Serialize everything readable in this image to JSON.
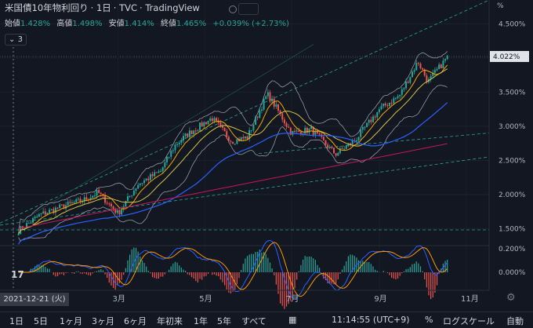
{
  "header": {
    "title": "米国債10年物利回り",
    "interval": "1日",
    "source": "TVC",
    "platform": "TradingView"
  },
  "ohlc": {
    "open_label": "始値",
    "open": "1.428%",
    "high_label": "高値",
    "high": "1.498%",
    "low_label": "安値",
    "low": "1.414%",
    "close_label": "終値",
    "close": "1.465%",
    "change": "+0.039% (+2.73%)"
  },
  "indicator_toggle": "3",
  "crosshair_date": "2021-12-21 (火)",
  "bottom_bar": {
    "ranges": [
      "1日",
      "5日",
      "1ヶ月",
      "3ヶ月",
      "6ヶ月",
      "年初来",
      "1年",
      "5年",
      "すべて"
    ],
    "time": "11:14:55 (UTC+9)",
    "percent": "%",
    "log": "ログスケール",
    "auto": "自動"
  },
  "colors": {
    "bg": "#131722",
    "up": "#26a69a",
    "down": "#ef5350",
    "ma_short": "#f7a600",
    "ma_mid": "#d4c34a",
    "ma_long": "#2962ff",
    "ma_200": "#c2185b",
    "bb": "#9598a1",
    "macd": "#2962ff",
    "signal": "#ff9800"
  },
  "chart_data": {
    "type": "candlestick",
    "title": "米国債10年物利回り",
    "y_unit": "%",
    "y_ticks": [
      "4.500%",
      "4.000%",
      "3.500%",
      "3.000%",
      "2.500%",
      "2.000%",
      "1.500%"
    ],
    "y_range": [
      1.25,
      4.85
    ],
    "x_ticks": [
      "3月",
      "5月",
      "7月",
      "9月",
      "11月"
    ],
    "last_value": "4.022%",
    "series_close": [
      [
        "2021-12-21",
        1.47
      ],
      [
        "2022-01-05",
        1.7
      ],
      [
        "2022-01-20",
        1.82
      ],
      [
        "2022-02-05",
        1.92
      ],
      [
        "2022-02-15",
        2.03
      ],
      [
        "2022-03-01",
        1.72
      ],
      [
        "2022-03-15",
        2.15
      ],
      [
        "2022-03-31",
        2.34
      ],
      [
        "2022-04-10",
        2.72
      ],
      [
        "2022-04-20",
        2.9
      ],
      [
        "2022-05-06",
        3.12
      ],
      [
        "2022-05-20",
        2.78
      ],
      [
        "2022-05-31",
        2.84
      ],
      [
        "2022-06-14",
        3.47
      ],
      [
        "2022-06-20",
        3.28
      ],
      [
        "2022-07-01",
        2.9
      ],
      [
        "2022-07-15",
        2.95
      ],
      [
        "2022-08-01",
        2.59
      ],
      [
        "2022-08-15",
        2.8
      ],
      [
        "2022-09-01",
        3.25
      ],
      [
        "2022-09-15",
        3.45
      ],
      [
        "2022-09-28",
        3.95
      ],
      [
        "2022-10-05",
        3.65
      ],
      [
        "2022-10-20",
        4.05
      ]
    ],
    "macd_ticks": [
      "0.200%",
      "0.000%"
    ]
  }
}
